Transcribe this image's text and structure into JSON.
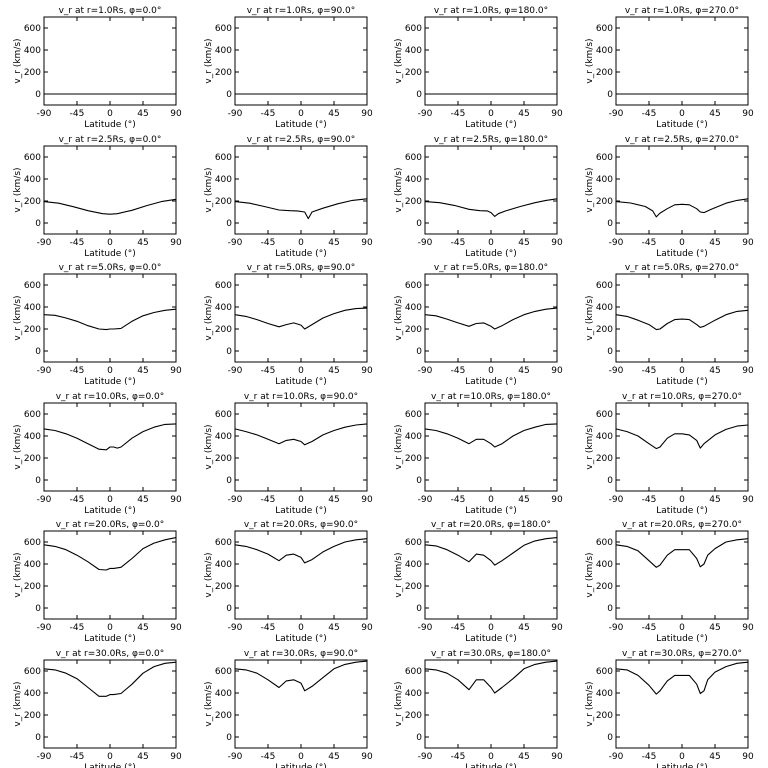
{
  "chart_data": {
    "type": "line",
    "grid": false,
    "layout": "6x4 panels",
    "xlabel": "Latitude (°)",
    "ylabel": "v_r (km/s)",
    "xlim": [
      -90,
      90
    ],
    "ylim": [
      -100,
      700
    ],
    "xticks": [
      -90,
      -45,
      0,
      45,
      90
    ],
    "yticks": [
      0,
      200,
      400,
      600
    ],
    "rows": [
      {
        "radius": "1.0",
        "panels": [
          {
            "title": "v_r at r=1.0Rs, φ=0.0°",
            "x": [
              -90,
              90
            ],
            "y": [
              0,
              0
            ]
          },
          {
            "title": "v_r at r=1.0Rs, φ=90.0°",
            "x": [
              -90,
              90
            ],
            "y": [
              0,
              0
            ]
          },
          {
            "title": "v_r at r=1.0Rs, φ=180.0°",
            "x": [
              -90,
              90
            ],
            "y": [
              0,
              0
            ]
          },
          {
            "title": "v_r at r=1.0Rs, φ=270.0°",
            "x": [
              -90,
              90
            ],
            "y": [
              0,
              0
            ]
          }
        ]
      },
      {
        "radius": "2.5",
        "panels": [
          {
            "title": "v_r at r=2.5Rs, φ=0.0°",
            "x": [
              -90,
              -70,
              -50,
              -30,
              -10,
              0,
              10,
              30,
              50,
              70,
              90
            ],
            "y": [
              195,
              180,
              148,
              112,
              85,
              80,
              85,
              115,
              158,
              195,
              215
            ]
          },
          {
            "title": "v_r at r=2.5Rs, φ=90.0°",
            "x": [
              -90,
              -70,
              -50,
              -30,
              -15,
              -5,
              5,
              10,
              15,
              30,
              50,
              70,
              90
            ],
            "y": [
              195,
              180,
              150,
              118,
              112,
              110,
              100,
              40,
              100,
              135,
              175,
              205,
              220
            ]
          },
          {
            "title": "v_r at r=2.5Rs, φ=180.0°",
            "x": [
              -90,
              -70,
              -50,
              -30,
              -15,
              -5,
              0,
              5,
              10,
              20,
              40,
              60,
              75,
              90
            ],
            "y": [
              195,
              185,
              160,
              125,
              112,
              110,
              95,
              60,
              85,
              110,
              150,
              185,
              205,
              220
            ]
          },
          {
            "title": "v_r at r=2.5Rs, φ=270.0°",
            "x": [
              -90,
              -70,
              -50,
              -40,
              -35,
              -30,
              -20,
              -10,
              0,
              10,
              20,
              25,
              30,
              40,
              60,
              75,
              90
            ],
            "y": [
              195,
              182,
              150,
              110,
              55,
              90,
              130,
              165,
              170,
              165,
              130,
              100,
              95,
              125,
              180,
              205,
              220
            ]
          }
        ]
      },
      {
        "radius": "5.0",
        "panels": [
          {
            "title": "v_r at r=5.0Rs, φ=0.0°",
            "x": [
              -90,
              -75,
              -60,
              -45,
              -30,
              -15,
              -5,
              0,
              5,
              15,
              30,
              45,
              60,
              75,
              90
            ],
            "y": [
              330,
              325,
              300,
              270,
              230,
              200,
              195,
              200,
              200,
              205,
              270,
              320,
              350,
              370,
              380
            ]
          },
          {
            "title": "v_r at r=5.0Rs, φ=90.0°",
            "x": [
              -90,
              -75,
              -60,
              -45,
              -30,
              -20,
              -10,
              0,
              5,
              15,
              30,
              45,
              60,
              75,
              90
            ],
            "y": [
              330,
              315,
              285,
              250,
              220,
              240,
              255,
              235,
              200,
              240,
              300,
              340,
              370,
              385,
              390
            ]
          },
          {
            "title": "v_r at r=5.0Rs, φ=180.0°",
            "x": [
              -90,
              -75,
              -60,
              -45,
              -30,
              -20,
              -10,
              0,
              5,
              15,
              30,
              45,
              60,
              75,
              90
            ],
            "y": [
              330,
              320,
              290,
              255,
              225,
              250,
              255,
              225,
              200,
              230,
              285,
              330,
              360,
              380,
              390
            ]
          },
          {
            "title": "v_r at r=5.0Rs, φ=270.0°",
            "x": [
              -90,
              -75,
              -60,
              -45,
              -35,
              -30,
              -20,
              -10,
              0,
              10,
              20,
              25,
              30,
              45,
              60,
              75,
              90
            ],
            "y": [
              330,
              315,
              280,
              240,
              195,
              200,
              250,
              285,
              290,
              285,
              240,
              215,
              225,
              280,
              330,
              360,
              370
            ]
          }
        ]
      },
      {
        "radius": "10.0",
        "panels": [
          {
            "title": "v_r at r=10.0Rs, φ=0.0°",
            "x": [
              -90,
              -75,
              -60,
              -45,
              -30,
              -15,
              -5,
              0,
              5,
              10,
              15,
              30,
              45,
              60,
              75,
              90
            ],
            "y": [
              465,
              450,
              420,
              380,
              330,
              280,
              275,
              300,
              300,
              290,
              300,
              380,
              440,
              480,
              505,
              510
            ]
          },
          {
            "title": "v_r at r=10.0Rs, φ=90.0°",
            "x": [
              -90,
              -75,
              -60,
              -45,
              -30,
              -20,
              -10,
              0,
              5,
              15,
              30,
              45,
              60,
              75,
              90
            ],
            "y": [
              465,
              440,
              410,
              370,
              330,
              360,
              370,
              350,
              320,
              350,
              410,
              450,
              480,
              500,
              510
            ]
          },
          {
            "title": "v_r at r=10.0Rs, φ=180.0°",
            "x": [
              -90,
              -75,
              -60,
              -45,
              -30,
              -20,
              -10,
              0,
              5,
              15,
              30,
              45,
              60,
              75,
              90
            ],
            "y": [
              465,
              450,
              420,
              380,
              330,
              370,
              370,
              330,
              300,
              330,
              400,
              450,
              480,
              505,
              510
            ]
          },
          {
            "title": "v_r at r=10.0Rs, φ=270.0°",
            "x": [
              -90,
              -75,
              -60,
              -45,
              -35,
              -30,
              -20,
              -10,
              0,
              10,
              20,
              25,
              30,
              45,
              60,
              75,
              90
            ],
            "y": [
              465,
              440,
              400,
              330,
              285,
              300,
              380,
              420,
              420,
              410,
              360,
              290,
              330,
              410,
              460,
              490,
              500
            ]
          }
        ]
      },
      {
        "radius": "20.0",
        "panels": [
          {
            "title": "v_r at r=20.0Rs, φ=0.0°",
            "x": [
              -90,
              -75,
              -60,
              -45,
              -30,
              -15,
              -5,
              0,
              5,
              15,
              30,
              45,
              60,
              75,
              90
            ],
            "y": [
              575,
              560,
              530,
              480,
              420,
              350,
              345,
              360,
              360,
              370,
              450,
              540,
              590,
              620,
              640
            ]
          },
          {
            "title": "v_r at r=20.0Rs, φ=90.0°",
            "x": [
              -90,
              -75,
              -60,
              -45,
              -30,
              -20,
              -10,
              0,
              5,
              15,
              30,
              45,
              60,
              75,
              90
            ],
            "y": [
              575,
              560,
              530,
              490,
              430,
              480,
              490,
              460,
              410,
              440,
              510,
              560,
              600,
              620,
              630
            ]
          },
          {
            "title": "v_r at r=20.0Rs, φ=180.0°",
            "x": [
              -90,
              -75,
              -60,
              -45,
              -30,
              -20,
              -10,
              0,
              5,
              15,
              30,
              45,
              60,
              75,
              90
            ],
            "y": [
              575,
              565,
              530,
              480,
              420,
              490,
              480,
              430,
              390,
              430,
              500,
              570,
              610,
              630,
              640
            ]
          },
          {
            "title": "v_r at r=20.0Rs, φ=270.0°",
            "x": [
              -90,
              -75,
              -60,
              -45,
              -35,
              -30,
              -20,
              -10,
              0,
              10,
              20,
              25,
              30,
              35,
              45,
              60,
              75,
              90
            ],
            "y": [
              575,
              560,
              520,
              430,
              370,
              390,
              480,
              530,
              530,
              530,
              450,
              375,
              400,
              480,
              540,
              600,
              620,
              630
            ]
          }
        ]
      },
      {
        "radius": "30.0",
        "panels": [
          {
            "title": "v_r at r=30.0Rs, φ=0.0°",
            "x": [
              -90,
              -75,
              -60,
              -45,
              -30,
              -15,
              -5,
              0,
              5,
              15,
              30,
              45,
              60,
              75,
              90
            ],
            "y": [
              620,
              610,
              580,
              530,
              450,
              370,
              370,
              385,
              385,
              395,
              480,
              580,
              640,
              670,
              680
            ]
          },
          {
            "title": "v_r at r=30.0Rs, φ=90.0°",
            "x": [
              -90,
              -75,
              -60,
              -45,
              -30,
              -20,
              -10,
              0,
              5,
              15,
              30,
              45,
              60,
              75,
              90
            ],
            "y": [
              620,
              610,
              580,
              520,
              450,
              510,
              520,
              490,
              420,
              460,
              540,
              620,
              660,
              680,
              690
            ]
          },
          {
            "title": "v_r at r=30.0Rs, φ=180.0°",
            "x": [
              -90,
              -75,
              -60,
              -45,
              -30,
              -20,
              -10,
              0,
              5,
              15,
              30,
              45,
              60,
              75,
              90
            ],
            "y": [
              620,
              610,
              580,
              520,
              430,
              520,
              520,
              450,
              400,
              450,
              530,
              620,
              660,
              680,
              690
            ]
          },
          {
            "title": "v_r at r=30.0Rs, φ=270.0°",
            "x": [
              -90,
              -75,
              -60,
              -45,
              -35,
              -30,
              -20,
              -10,
              0,
              10,
              20,
              25,
              30,
              35,
              45,
              60,
              75,
              90
            ],
            "y": [
              620,
              610,
              560,
              470,
              390,
              420,
              510,
              560,
              560,
              560,
              480,
              395,
              420,
              520,
              590,
              640,
              670,
              680
            ]
          }
        ]
      }
    ]
  }
}
